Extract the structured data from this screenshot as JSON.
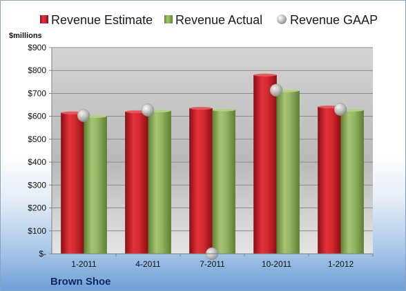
{
  "chart_data": {
    "type": "bar",
    "categories": [
      "1-2011",
      "4-2011",
      "7-2011",
      "10-2011",
      "1-2012"
    ],
    "series": [
      {
        "name": "Revenue Estimate",
        "values": [
          615,
          620,
          635,
          780,
          641
        ],
        "color": "#cc1f27",
        "kind": "bar"
      },
      {
        "name": "Revenue Actual",
        "values": [
          600,
          624,
          628,
          712,
          627
        ],
        "color": "#8dae5c",
        "kind": "bar"
      },
      {
        "name": "Revenue GAAP",
        "values": [
          603,
          627,
          0,
          714,
          630
        ],
        "color": "#c9c9c9",
        "kind": "marker"
      }
    ],
    "y_tick_labels": [
      "$-",
      "$100",
      "$200",
      "$300",
      "$400",
      "$500",
      "$600",
      "$700",
      "$800",
      "$900"
    ],
    "ylabel": "$millions",
    "ylim": [
      0,
      900
    ],
    "grid": true,
    "legend": "top",
    "footer_label": "Brown Shoe"
  }
}
